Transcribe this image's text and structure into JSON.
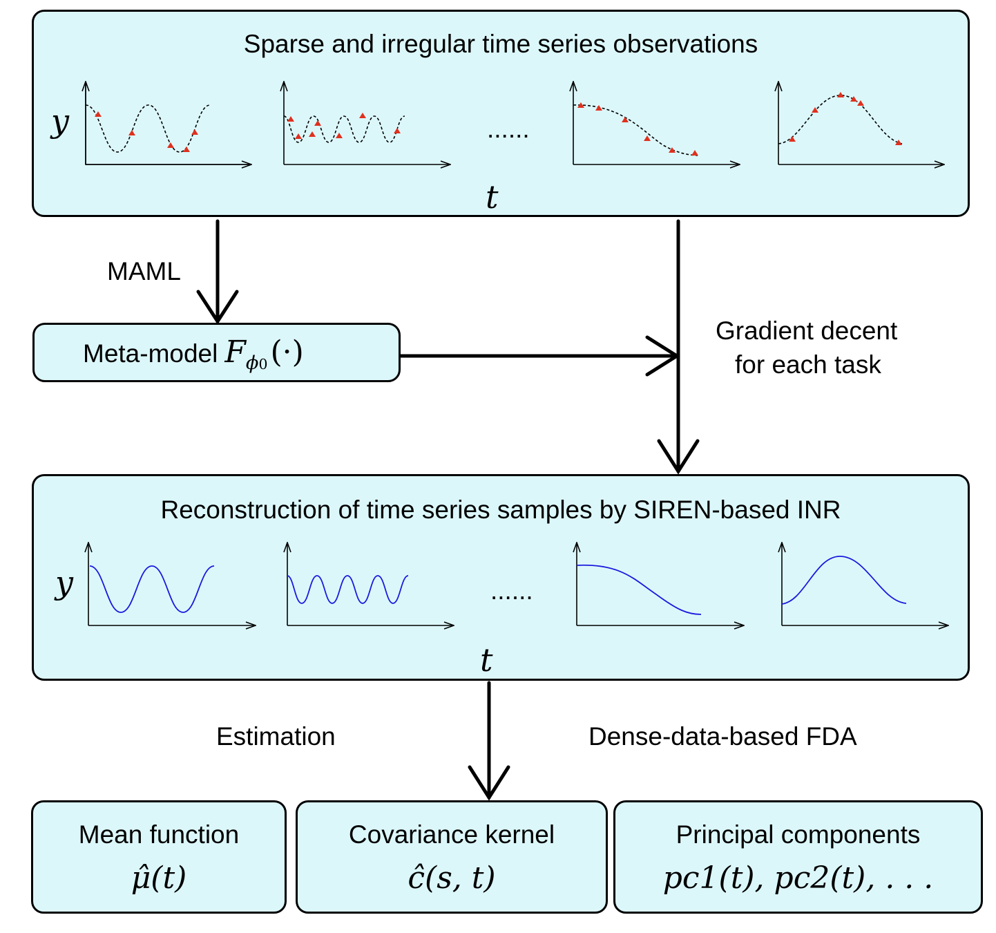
{
  "top_panel": {
    "title": "Sparse and irregular time series observations",
    "y_label": "y",
    "t_label": "t",
    "ellipsis": "......"
  },
  "maml_label": "MAML",
  "meta_model": {
    "label": "Meta-model",
    "symbol": "F",
    "subscript": "ϕ",
    "subscript_index": "0",
    "args": "(·)"
  },
  "gradient_label": {
    "line1": "Gradient decent",
    "line2": "for each task"
  },
  "reconstruction_panel": {
    "title": "Reconstruction of time series samples by SIREN-based INR",
    "y_label": "y",
    "t_label": "t",
    "ellipsis": "......"
  },
  "estimation_label": "Estimation",
  "fda_label": "Dense-data-based FDA",
  "outputs": [
    {
      "title": "Mean function",
      "formula": "μ̂(t)"
    },
    {
      "title": "Covariance kernel",
      "formula": "ĉ(s, t)"
    },
    {
      "title": "Principal components",
      "formula": "pc1(t), pc2(t), . . ."
    }
  ],
  "colors": {
    "box_fill": "#dcf7fa",
    "observation_marker": "#e0301e",
    "reconstruction_curve": "#1a1adf",
    "dashed_curve": "#000000"
  }
}
